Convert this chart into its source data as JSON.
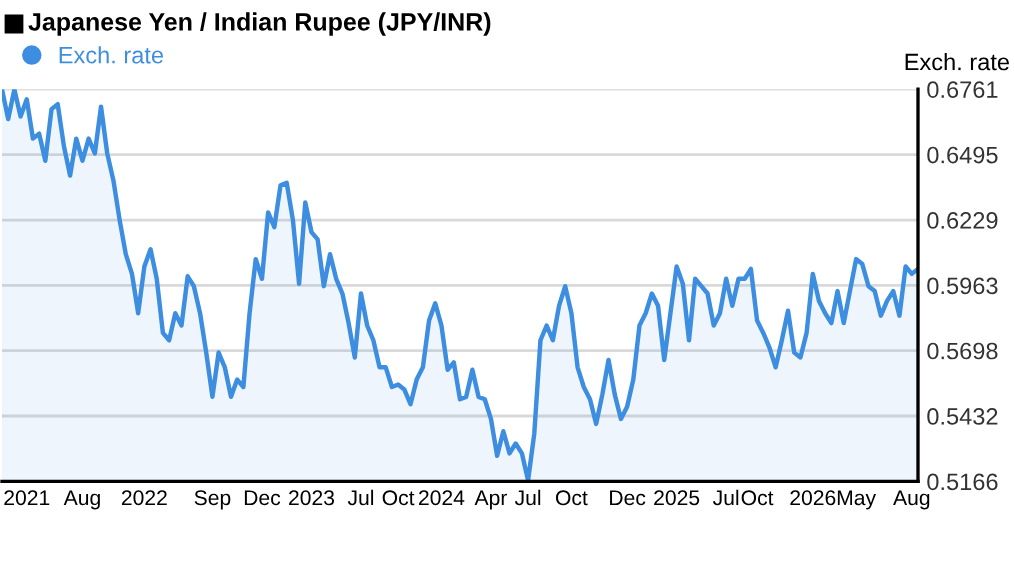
{
  "chart_data": {
    "type": "area",
    "title": "Japanese Yen / Indian Rupee (JPY/INR)",
    "ylabel": "Exch. rate",
    "legend": "top left",
    "grid": "y",
    "marker": "none",
    "line_style": "solid",
    "categories": [
      null,
      null,
      null,
      null,
      "2021",
      null,
      null,
      null,
      null,
      null,
      null,
      null,
      null,
      "Aug",
      null,
      null,
      null,
      null,
      null,
      null,
      null,
      null,
      null,
      "2022",
      null,
      null,
      null,
      null,
      null,
      null,
      null,
      null,
      null,
      null,
      "Sep",
      null,
      null,
      null,
      null,
      null,
      null,
      null,
      "Dec",
      null,
      null,
      null,
      null,
      null,
      null,
      null,
      "2023",
      null,
      null,
      null,
      null,
      null,
      null,
      null,
      "Jul",
      null,
      null,
      null,
      null,
      null,
      "Oct",
      null,
      null,
      null,
      null,
      null,
      null,
      "2024",
      null,
      null,
      null,
      null,
      null,
      null,
      null,
      "Apr",
      null,
      null,
      null,
      null,
      null,
      "Jul",
      null,
      null,
      null,
      null,
      null,
      null,
      "Oct",
      null,
      null,
      null,
      null,
      null,
      null,
      null,
      null,
      "Dec",
      null,
      null,
      null,
      null,
      null,
      null,
      null,
      "2025",
      null,
      null,
      null,
      null,
      null,
      null,
      null,
      "Jul",
      null,
      null,
      null,
      null,
      "Oct",
      null,
      null,
      null,
      null,
      null,
      null,
      null,
      null,
      "2026",
      null,
      null,
      null,
      null,
      null,
      null,
      "May",
      null,
      null,
      null,
      null,
      null,
      null,
      null,
      null,
      "Aug",
      null
    ],
    "ylim": [
      0.5166,
      0.6761
    ],
    "yticks": [
      0.5166,
      0.5432,
      0.5698,
      0.5963,
      0.6229,
      0.6495,
      0.6761
    ],
    "series": [
      {
        "name": "Exch. rate",
        "color": "#3d8ee0",
        "values": [
          0.676,
          0.664,
          0.676,
          0.665,
          0.672,
          0.656,
          0.658,
          0.647,
          0.668,
          0.67,
          0.653,
          0.641,
          0.656,
          0.647,
          0.656,
          0.65,
          0.669,
          0.65,
          0.639,
          0.623,
          0.609,
          0.601,
          0.585,
          0.604,
          0.611,
          0.599,
          0.577,
          0.574,
          0.585,
          0.58,
          0.6,
          0.596,
          0.585,
          0.569,
          0.551,
          0.569,
          0.563,
          0.551,
          0.558,
          0.555,
          0.585,
          0.607,
          0.599,
          0.626,
          0.62,
          0.637,
          0.638,
          0.623,
          0.597,
          0.63,
          0.618,
          0.615,
          0.596,
          0.609,
          0.599,
          0.593,
          0.581,
          0.567,
          0.593,
          0.58,
          0.574,
          0.563,
          0.563,
          0.555,
          0.556,
          0.554,
          0.548,
          0.558,
          0.563,
          0.582,
          0.589,
          0.58,
          0.562,
          0.565,
          0.55,
          0.551,
          0.562,
          0.551,
          0.55,
          0.542,
          0.527,
          0.537,
          0.528,
          0.532,
          0.528,
          0.517,
          0.536,
          0.574,
          0.58,
          0.574,
          0.588,
          0.596,
          0.585,
          0.563,
          0.555,
          0.55,
          0.54,
          0.552,
          0.566,
          0.552,
          0.542,
          0.547,
          0.558,
          0.58,
          0.585,
          0.593,
          0.588,
          0.566,
          0.585,
          0.604,
          0.597,
          0.574,
          0.599,
          0.596,
          0.593,
          0.58,
          0.585,
          0.599,
          0.588,
          0.599,
          0.599,
          0.603,
          0.582,
          0.577,
          0.571,
          0.563,
          0.574,
          0.586,
          0.569,
          0.567,
          0.577,
          0.601,
          0.59,
          0.585,
          0.581,
          0.594,
          0.581,
          0.594,
          0.607,
          0.605,
          0.596,
          0.594,
          0.584,
          0.59,
          0.594,
          0.584,
          0.604,
          0.601,
          0.603
        ]
      }
    ]
  }
}
